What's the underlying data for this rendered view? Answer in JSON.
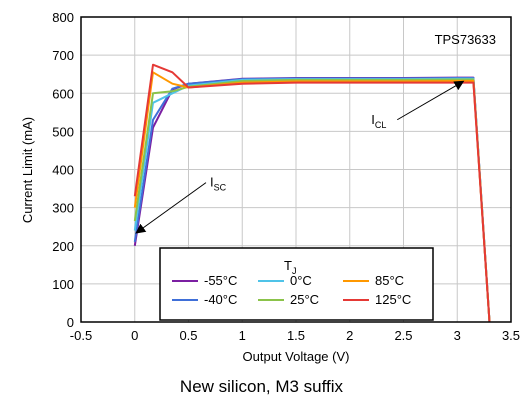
{
  "chart_data": {
    "type": "line",
    "device_label": "TPS73633",
    "xlabel": "Output Voltage (V)",
    "ylabel": "Current Limit (mA)",
    "xlim": [
      -0.5,
      3.5
    ],
    "ylim": [
      0,
      800
    ],
    "x_ticks": [
      "-0.5",
      "0",
      "0.5",
      "1",
      "1.5",
      "2",
      "2.5",
      "3",
      "3.5"
    ],
    "x_tick_values": [
      -0.5,
      0,
      0.5,
      1,
      1.5,
      2,
      2.5,
      3,
      3.5
    ],
    "y_ticks": [
      "0",
      "100",
      "200",
      "300",
      "400",
      "500",
      "600",
      "700",
      "800"
    ],
    "y_tick_values": [
      0,
      100,
      200,
      300,
      400,
      500,
      600,
      700,
      800
    ],
    "grid": true,
    "legend_title_main": "T",
    "legend_title_sub": "J",
    "legend_placement": "bottom-center",
    "annotations": [
      {
        "main": "I",
        "sub": "CL",
        "x": 2.2,
        "y": 520,
        "arrow_to": [
          3.05,
          630
        ]
      },
      {
        "main": "I",
        "sub": "SC",
        "x": 0.7,
        "y": 355,
        "arrow_to": [
          0.02,
          235
        ]
      }
    ],
    "series": [
      {
        "name": "-55°C",
        "color": "#7b1fa2",
        "points": [
          [
            0,
            200
          ],
          [
            0.17,
            510
          ],
          [
            0.35,
            610
          ],
          [
            0.5,
            625
          ],
          [
            1,
            638
          ],
          [
            1.5,
            640
          ],
          [
            2,
            640
          ],
          [
            2.5,
            640
          ],
          [
            3,
            641
          ],
          [
            3.15,
            641
          ],
          [
            3.3,
            0
          ]
        ]
      },
      {
        "name": "-40°C",
        "color": "#3f6fd8",
        "points": [
          [
            0,
            210
          ],
          [
            0.17,
            530
          ],
          [
            0.35,
            612
          ],
          [
            0.5,
            625
          ],
          [
            1,
            637
          ],
          [
            1.5,
            639
          ],
          [
            2,
            639
          ],
          [
            2.5,
            639
          ],
          [
            3,
            640
          ],
          [
            3.15,
            640
          ],
          [
            3.3,
            0
          ]
        ]
      },
      {
        "name": "0°C",
        "color": "#4fc3e8",
        "points": [
          [
            0,
            240
          ],
          [
            0.17,
            575
          ],
          [
            0.35,
            600
          ],
          [
            0.5,
            620
          ],
          [
            1,
            635
          ],
          [
            1.5,
            637
          ],
          [
            2,
            637
          ],
          [
            2.5,
            637
          ],
          [
            3,
            638
          ],
          [
            3.15,
            638
          ],
          [
            3.3,
            0
          ]
        ]
      },
      {
        "name": "25°C",
        "color": "#8bc34a",
        "points": [
          [
            0,
            265
          ],
          [
            0.17,
            600
          ],
          [
            0.35,
            605
          ],
          [
            0.5,
            617
          ],
          [
            1,
            632
          ],
          [
            1.5,
            635
          ],
          [
            2,
            635
          ],
          [
            2.5,
            635
          ],
          [
            3,
            636
          ],
          [
            3.15,
            636
          ],
          [
            3.3,
            0
          ]
        ]
      },
      {
        "name": "85°C",
        "color": "#ff9800",
        "points": [
          [
            0,
            300
          ],
          [
            0.17,
            655
          ],
          [
            0.35,
            625
          ],
          [
            0.5,
            615
          ],
          [
            1,
            628
          ],
          [
            1.5,
            631
          ],
          [
            2,
            631
          ],
          [
            2.5,
            631
          ],
          [
            3,
            632
          ],
          [
            3.15,
            632
          ],
          [
            3.3,
            0
          ]
        ]
      },
      {
        "name": "125°C",
        "color": "#e53935",
        "points": [
          [
            0,
            330
          ],
          [
            0.17,
            675
          ],
          [
            0.35,
            655
          ],
          [
            0.5,
            615
          ],
          [
            1,
            625
          ],
          [
            1.5,
            628
          ],
          [
            2,
            628
          ],
          [
            2.5,
            628
          ],
          [
            3,
            628
          ],
          [
            3.15,
            628
          ],
          [
            3.3,
            0
          ]
        ]
      }
    ]
  },
  "caption": "New silicon, M3 suffix"
}
